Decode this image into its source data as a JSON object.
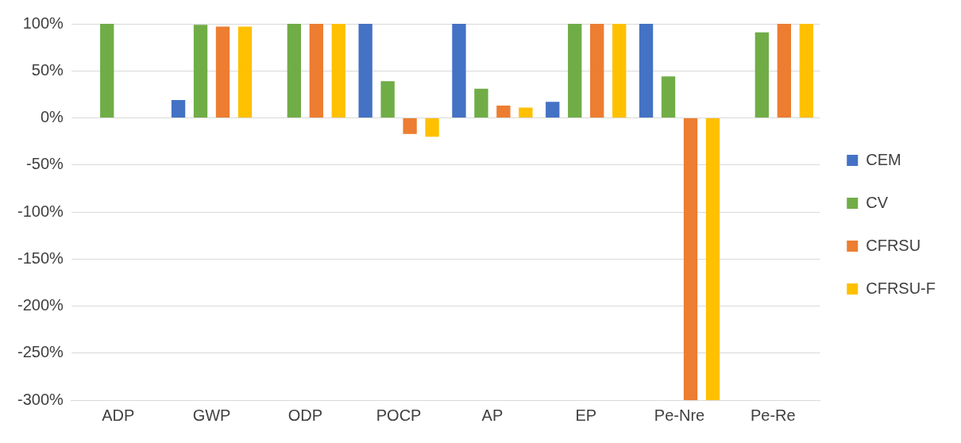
{
  "chart_data": {
    "type": "bar",
    "categories": [
      "ADP",
      "GWP",
      "ODP",
      "POCP",
      "AP",
      "EP",
      "Pe-Nre",
      "Pe-Re"
    ],
    "series": [
      {
        "name": "CEM",
        "color": "#4472c4",
        "values": [
          0,
          19,
          0,
          100,
          100,
          17,
          100,
          0
        ]
      },
      {
        "name": "CV",
        "color": "#70ad47",
        "values": [
          100,
          99,
          100,
          39,
          31,
          100,
          44,
          91
        ]
      },
      {
        "name": "CFRSU",
        "color": "#ed7d31",
        "values": [
          0,
          97,
          100,
          -17,
          13,
          100,
          -300,
          100
        ]
      },
      {
        "name": "CFRSU-F",
        "color": "#ffc000",
        "values": [
          0,
          97,
          100,
          -20,
          11,
          100,
          -300,
          100
        ]
      }
    ],
    "ylim": [
      -300,
      100
    ],
    "yticks": [
      {
        "value": -300,
        "label": "-300%"
      },
      {
        "value": -250,
        "label": "-250%"
      },
      {
        "value": -200,
        "label": "-200%"
      },
      {
        "value": -150,
        "label": "-150%"
      },
      {
        "value": -100,
        "label": "-100%"
      },
      {
        "value": -50,
        "label": "-50%"
      },
      {
        "value": 0,
        "label": "0%"
      },
      {
        "value": 50,
        "label": "50%"
      },
      {
        "value": 100,
        "label": "100%"
      }
    ],
    "grid": "y",
    "legend": "right"
  }
}
